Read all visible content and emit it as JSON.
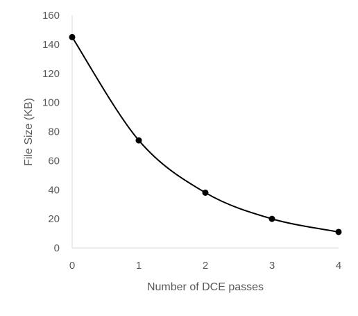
{
  "chart_data": {
    "type": "scatter",
    "title": "",
    "xlabel": "Number of DCE passes",
    "ylabel": "File Size (KB)",
    "xlim": [
      0,
      4
    ],
    "ylim": [
      0,
      160
    ],
    "x_ticks": [
      "0",
      "1",
      "2",
      "3",
      "4"
    ],
    "y_ticks": [
      "0",
      "20",
      "40",
      "60",
      "80",
      "100",
      "120",
      "140",
      "160"
    ],
    "grid": false,
    "legend": "none",
    "smoothed_line": true,
    "series": [
      {
        "x": [
          0,
          1,
          2,
          3,
          4
        ],
        "y": [
          145,
          74,
          38,
          20,
          11
        ],
        "color": "#000000"
      }
    ]
  }
}
